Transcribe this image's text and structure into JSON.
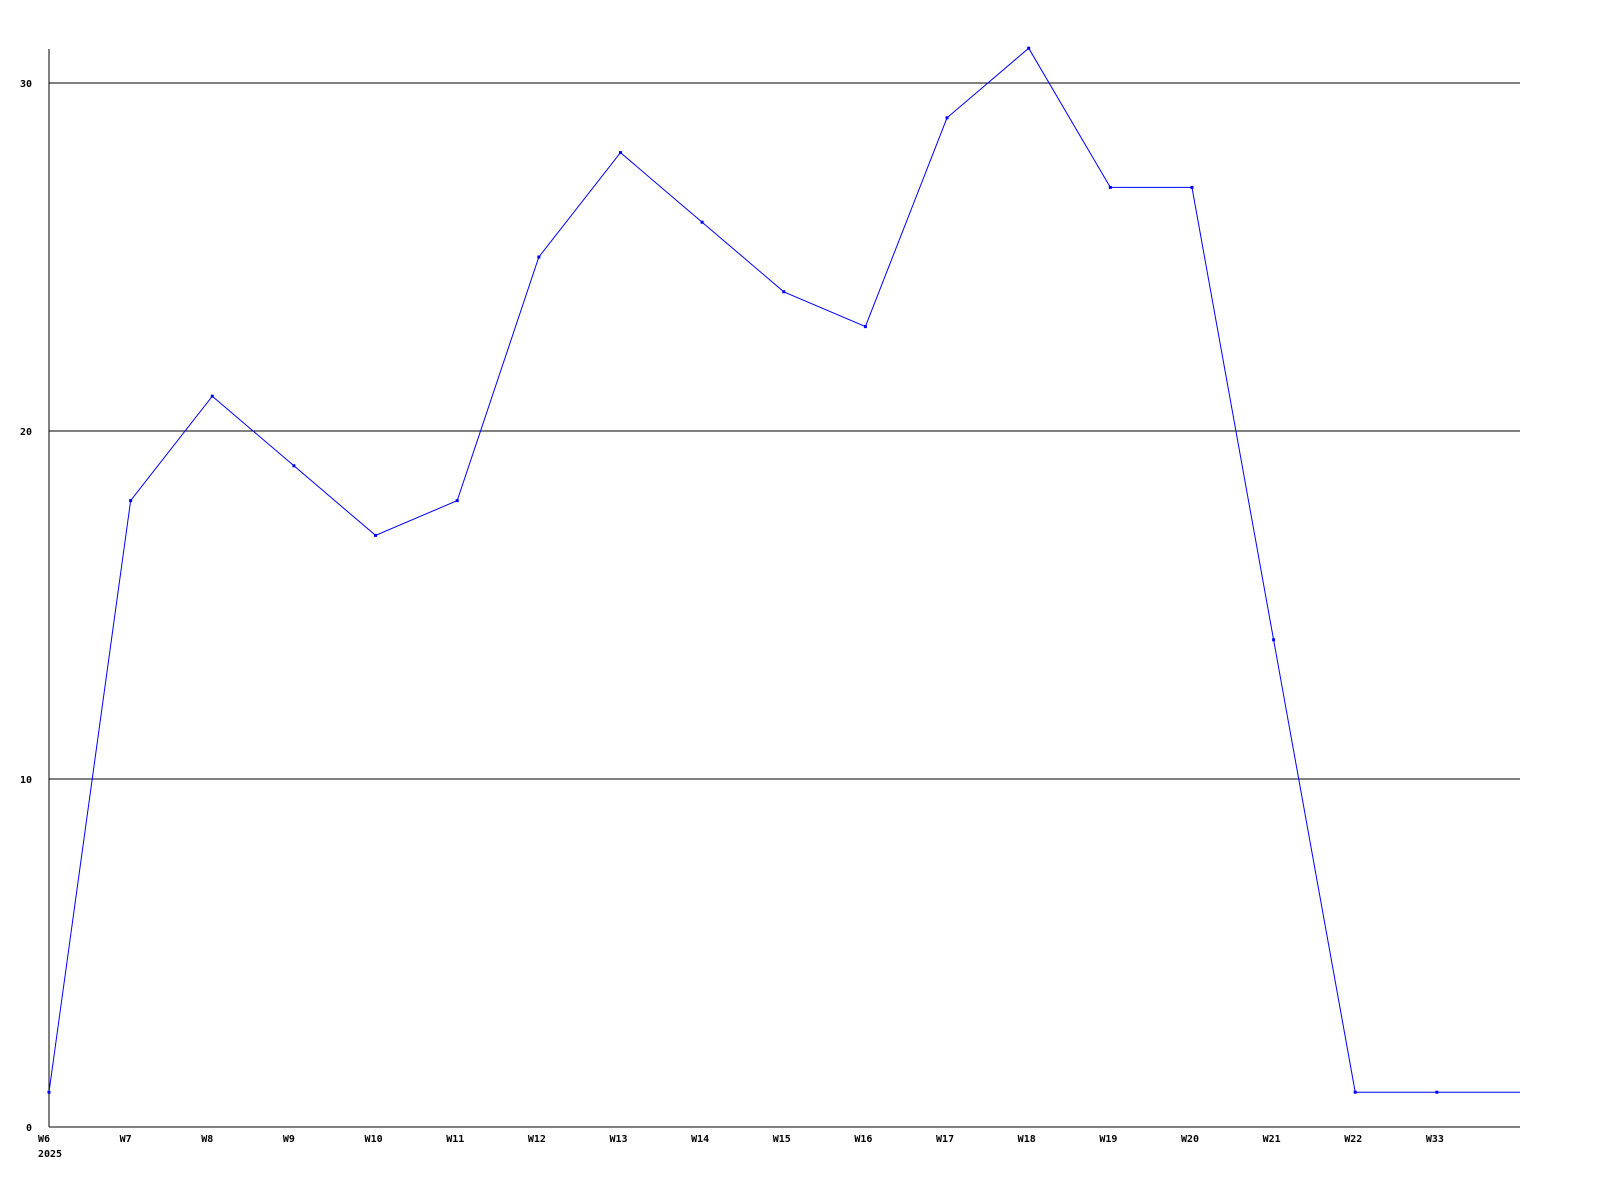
{
  "chart_data": {
    "type": "line",
    "title": "",
    "xlabel": "",
    "ylabel": "",
    "categories": [
      "W6",
      "W7",
      "W8",
      "W9",
      "W10",
      "W11",
      "W12",
      "W13",
      "W14",
      "W15",
      "W16",
      "W17",
      "W18",
      "W19",
      "W20",
      "W21",
      "W22",
      "W33"
    ],
    "year_label": "2025",
    "series": [
      {
        "values": [
          1,
          18,
          21,
          19,
          17,
          18,
          25,
          28,
          26,
          24,
          23,
          29,
          31,
          27,
          27,
          14,
          1,
          1
        ],
        "color": "#0000ff"
      }
    ],
    "ylim": [
      0,
      31
    ],
    "yticks": [
      0,
      10,
      20,
      30
    ],
    "grid": true,
    "legend": "none"
  }
}
